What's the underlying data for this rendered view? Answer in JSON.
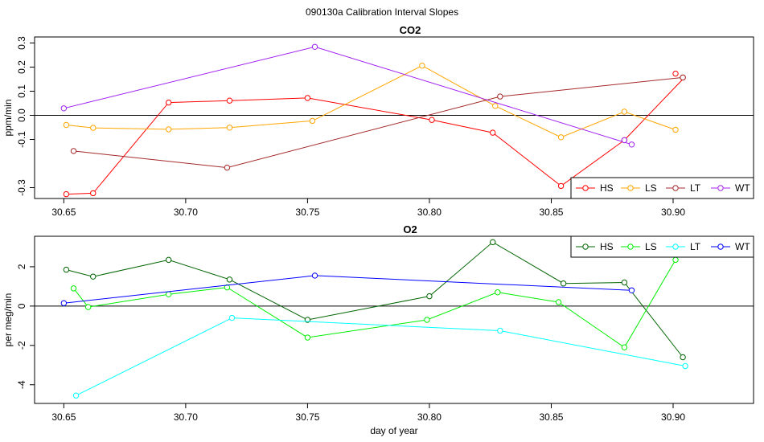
{
  "figure": {
    "title": "090130a   Calibration Interval Slopes"
  },
  "chart_data": [
    {
      "type": "line",
      "title": "CO2",
      "xlabel": "",
      "ylabel": "ppm/min",
      "xlim": [
        30.638,
        30.933
      ],
      "ylim": [
        -0.345,
        0.325
      ],
      "xticks": [
        "30.65",
        "30.70",
        "30.75",
        "30.80",
        "30.85",
        "30.90"
      ],
      "xtick_values": [
        30.65,
        30.7,
        30.75,
        30.8,
        30.85,
        30.9
      ],
      "yticks": [
        "-0.3",
        "-0.1",
        "0.0",
        "0.1",
        "0.2",
        "0.3"
      ],
      "ytick_values": [
        -0.3,
        -0.1,
        0.0,
        0.1,
        0.2,
        0.3
      ],
      "reference_line": 0,
      "legend_position": "bottom-right",
      "series": [
        {
          "name": "HS",
          "color": "#ff0000",
          "x": [
            30.651,
            30.662,
            30.693,
            30.718,
            30.75,
            30.801,
            30.826,
            30.854,
            30.88,
            30.904
          ],
          "y": [
            -0.327,
            -0.323,
            0.053,
            0.061,
            0.072,
            -0.019,
            -0.072,
            -0.293,
            -0.103,
            0.15
          ],
          "markers_x": [
            30.651,
            30.662,
            30.693,
            30.718,
            30.75,
            30.801,
            30.826,
            30.854,
            30.88,
            30.901,
            30.904
          ],
          "markers_y": [
            -0.327,
            -0.323,
            0.053,
            0.061,
            0.072,
            -0.019,
            -0.072,
            -0.293,
            -0.103,
            0.173,
            0.157
          ]
        },
        {
          "name": "LS",
          "color": "#ffa500",
          "x": [
            30.651,
            30.662,
            30.693,
            30.718,
            30.752,
            30.797,
            30.827,
            30.854,
            30.88,
            30.901
          ],
          "y": [
            -0.04,
            -0.052,
            -0.058,
            -0.051,
            -0.023,
            0.206,
            0.039,
            -0.091,
            0.015,
            -0.06
          ]
        },
        {
          "name": "LT",
          "color": "#a52a2a",
          "x": [
            30.654,
            30.717,
            30.829,
            30.904
          ],
          "y": [
            -0.148,
            -0.217,
            0.078,
            0.157
          ]
        },
        {
          "name": "WT",
          "color": "#a020f0",
          "x": [
            30.65,
            30.753,
            30.883
          ],
          "y": [
            0.029,
            0.284,
            -0.121
          ],
          "markers_x": [
            30.65,
            30.753,
            30.88,
            30.883
          ],
          "markers_y": [
            0.029,
            0.284,
            -0.103,
            -0.121
          ]
        }
      ]
    },
    {
      "type": "line",
      "title": "O2",
      "xlabel": "day of year",
      "ylabel": "per meg/min",
      "xlim": [
        30.638,
        30.933
      ],
      "ylim": [
        -4.95,
        3.55
      ],
      "xticks": [
        "30.65",
        "30.70",
        "30.75",
        "30.80",
        "30.85",
        "30.90"
      ],
      "xtick_values": [
        30.65,
        30.7,
        30.75,
        30.8,
        30.85,
        30.9
      ],
      "yticks": [
        "-4",
        "-2",
        "0",
        "2"
      ],
      "ytick_values": [
        -4,
        -2,
        0,
        2
      ],
      "reference_line": 0,
      "legend_position": "top-right",
      "series": [
        {
          "name": "HS",
          "color": "#006400",
          "x": [
            30.651,
            30.662,
            30.693,
            30.718,
            30.75,
            30.8,
            30.826,
            30.855,
            30.88,
            30.904
          ],
          "y": [
            1.85,
            1.5,
            2.35,
            1.35,
            -0.7,
            0.5,
            3.25,
            1.15,
            1.2,
            -2.6
          ]
        },
        {
          "name": "LS",
          "color": "#00ee00",
          "x": [
            30.654,
            30.66,
            30.693,
            30.717,
            30.75,
            30.799,
            30.828,
            30.853,
            30.88,
            30.901
          ],
          "y": [
            0.9,
            -0.05,
            0.6,
            0.95,
            -1.6,
            -0.7,
            0.7,
            0.2,
            -2.1,
            2.35
          ]
        },
        {
          "name": "LT",
          "color": "#00ffff",
          "x": [
            30.655,
            30.719,
            30.829,
            30.905
          ],
          "y": [
            -4.55,
            -0.6,
            -1.25,
            -3.05
          ]
        },
        {
          "name": "WT",
          "color": "#0000ff",
          "x": [
            30.65,
            30.753,
            30.883
          ],
          "y": [
            0.15,
            1.55,
            0.8
          ]
        }
      ]
    }
  ]
}
